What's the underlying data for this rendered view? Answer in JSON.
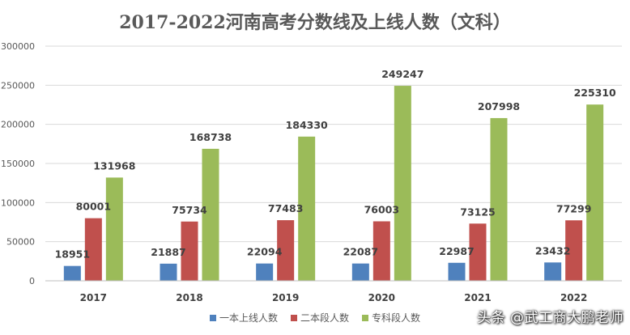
{
  "chart_data": {
    "type": "bar",
    "title": "2017-2022河南高考分数线及上线人数（文科）",
    "categories": [
      "2017",
      "2018",
      "2019",
      "2020",
      "2021",
      "2022"
    ],
    "series": [
      {
        "name": "一本上线人数",
        "color": "#4F81BD",
        "values": [
          18951,
          21887,
          22094,
          22087,
          22987,
          23432
        ]
      },
      {
        "name": "二本段人数",
        "color": "#C0504D",
        "values": [
          80001,
          75734,
          77483,
          76003,
          73125,
          77299
        ]
      },
      {
        "name": "专科段人数",
        "color": "#9BBB59",
        "values": [
          131968,
          168738,
          184330,
          249247,
          207998,
          225310
        ]
      }
    ],
    "ylim": [
      0,
      300000
    ],
    "yticks": [
      0,
      50000,
      100000,
      150000,
      200000,
      250000,
      300000
    ],
    "grid": true,
    "legend_position": "bottom"
  },
  "watermark": "头条 @武工商大鹏老师"
}
